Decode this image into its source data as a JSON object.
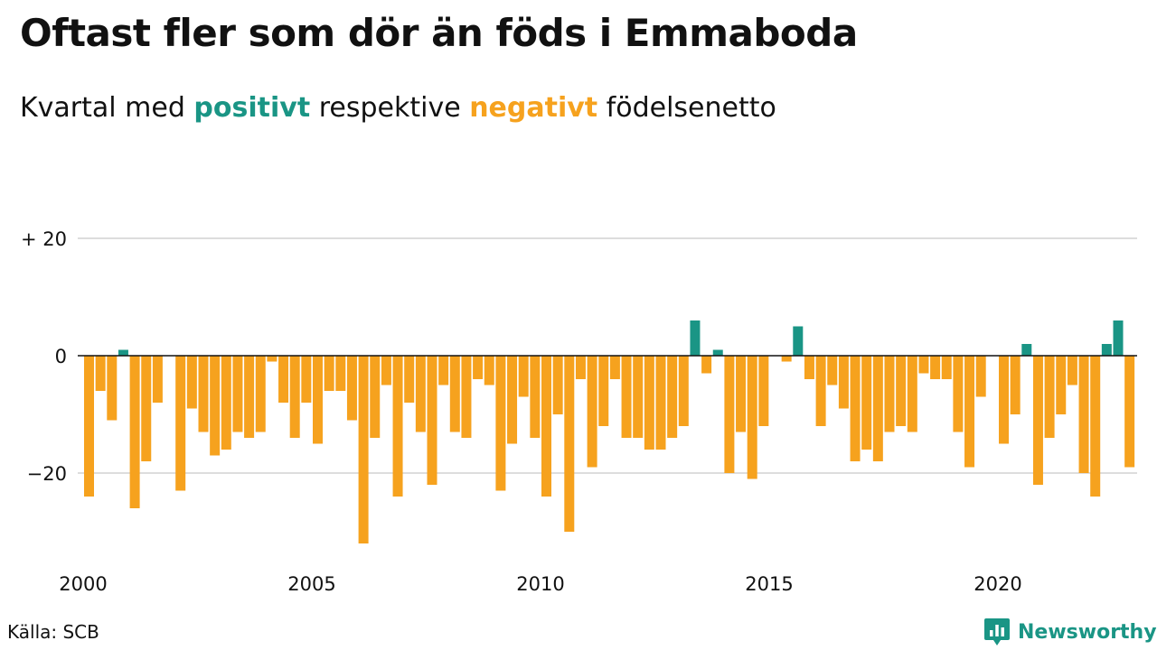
{
  "title": "Oftast fler som dör än föds i Emmaboda",
  "subtitle": {
    "prefix": "Kvartal med ",
    "positive_word": "positivt",
    "middle": " respektive ",
    "negative_word": "negativt",
    "suffix": " födelsenetto"
  },
  "colors": {
    "positive": "#1a9585",
    "negative": "#f6a21e",
    "grid": "#dddddd",
    "zero_line": "#111111",
    "text": "#111111"
  },
  "source": "Källa: SCB",
  "brand": {
    "name": "Newsworthy",
    "icon": "newsworthy-logo-icon"
  },
  "chart_data": {
    "type": "bar",
    "title": "Oftast fler som dör än föds i Emmaboda",
    "subtitle": "Kvartal med positivt respektive negativt födelsenetto",
    "x_ticks": [
      "2000",
      "2005",
      "2010",
      "2015",
      "2020"
    ],
    "y_ticks": [
      {
        "value": 20,
        "label": "+ 20"
      },
      {
        "value": 0,
        "label": "0"
      },
      {
        "value": -20,
        "label": "−20"
      }
    ],
    "ylim": [
      -33,
      20
    ],
    "grid": true,
    "legend": "in subtitle",
    "start_year": 2000,
    "periods_per_year": 4,
    "values": [
      -24,
      -6,
      -11,
      1,
      -26,
      -18,
      -8,
      0,
      -23,
      -9,
      -13,
      -17,
      -16,
      -13,
      -14,
      -13,
      -1,
      -8,
      -14,
      -8,
      -15,
      -6,
      -6,
      -11,
      -32,
      -14,
      -5,
      -24,
      -8,
      -13,
      -22,
      -5,
      -13,
      -14,
      -4,
      -5,
      -23,
      -15,
      -7,
      -14,
      -24,
      -10,
      -30,
      -4,
      -19,
      -12,
      -4,
      -14,
      -14,
      -16,
      -16,
      -14,
      -12,
      6,
      -3,
      1,
      -20,
      -13,
      -21,
      -12,
      0,
      -1,
      5,
      -4,
      -12,
      -5,
      -9,
      -18,
      -16,
      -18,
      -13,
      -12,
      -13,
      -3,
      -4,
      -4,
      -13,
      -19,
      -7,
      0,
      -15,
      -10,
      2,
      -22,
      -14,
      -10,
      -5,
      -20,
      -24,
      2,
      6,
      -19
    ]
  }
}
